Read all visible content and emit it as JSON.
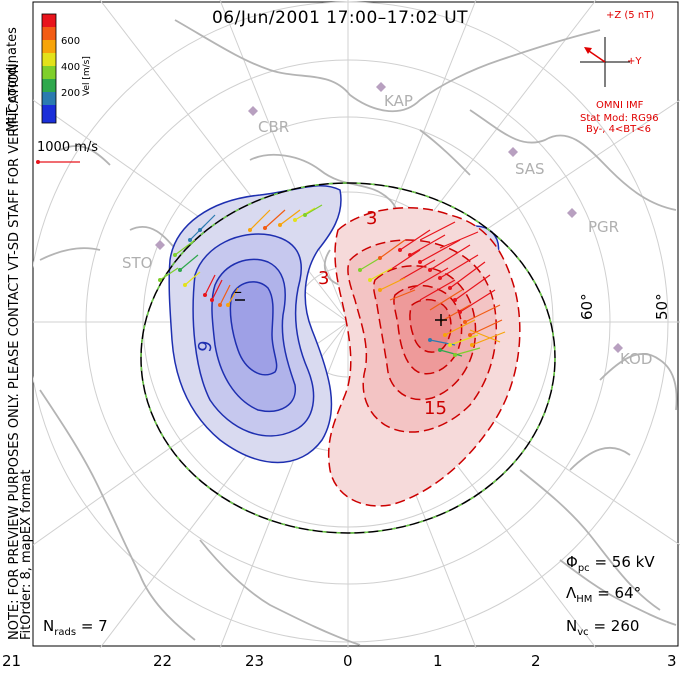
{
  "title": "06/Jun/2001 17:00–17:02 UT",
  "colorbar": {
    "label": "Vel [m/s]",
    "ticks": [
      "600",
      "400",
      "200"
    ],
    "colors": [
      "#e8141c",
      "#f25c14",
      "#f7a40a",
      "#e3e21a",
      "#7fcf2b",
      "#2fa84d",
      "#2b7bb0",
      "#1b2fd9"
    ]
  },
  "left_note": {
    "coords": "MLT coordinates",
    "warning": "NOTE: FOR PREVIEW PURPOSES ONLY. PLEASE CONTACT VT-SD STAFF FOR VERIFICATION.",
    "fit": "FitOrder: 8, mapEX format"
  },
  "scale_vector": "1000 m/s",
  "stations": [
    {
      "code": "CBR"
    },
    {
      "code": "KAP"
    },
    {
      "code": "SAS"
    },
    {
      "code": "PGR"
    },
    {
      "code": "STO"
    },
    {
      "code": "KOD"
    }
  ],
  "latitudes": [
    "60°",
    "50°"
  ],
  "mlt_labels": [
    "21",
    "22",
    "23",
    "0",
    "1",
    "2",
    "3"
  ],
  "contour_labels": {
    "neg1": "–",
    "neg2": "9",
    "pos1": "3",
    "pos2": "3",
    "pos3": "15",
    "plus": "+"
  },
  "imf": {
    "z_label": "+Z (5 nT)",
    "y_label": "+Y",
    "source": "OMNI IMF",
    "model": "Stat Mod: RG96",
    "condition": "By-, 4<BT<6",
    "color": "#e00000"
  },
  "stats": {
    "phi_pc": "Φ",
    "phi_sub": "pc",
    "phi_val": "= 56 kV",
    "lambda": "Λ",
    "lambda_sub": "HM",
    "lambda_val": "= 64°",
    "nvc": "N",
    "nvc_sub": "vc",
    "nvc_val": "= 260",
    "nrads": "N",
    "nrads_sub": "rads",
    "nrads_val": "= 7"
  }
}
